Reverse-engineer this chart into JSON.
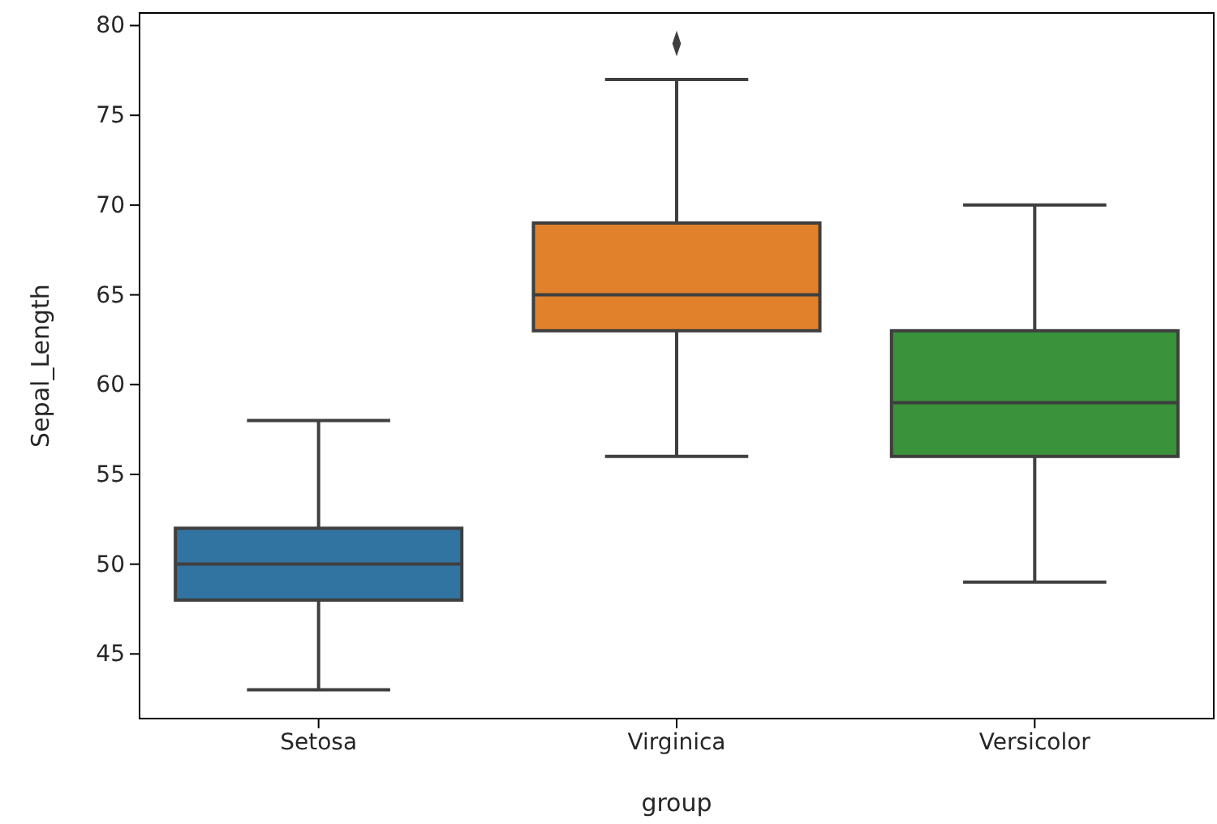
{
  "chart_data": {
    "type": "box",
    "xlabel": "group",
    "ylabel": "Sepal_Length",
    "categories": [
      "Setosa",
      "Virginica",
      "Versicolor"
    ],
    "colors": [
      "#3274a1",
      "#e1812c",
      "#3a923a"
    ],
    "boxes": [
      {
        "low": 43,
        "q1": 48,
        "median": 50,
        "q3": 52,
        "high": 58
      },
      {
        "low": 56,
        "q1": 63,
        "median": 65,
        "q3": 69,
        "high": 77,
        "outliers": [
          79
        ]
      },
      {
        "low": 49,
        "q1": 56,
        "median": 59,
        "q3": 63,
        "high": 70
      }
    ],
    "ylim": [
      41.4,
      80.7
    ],
    "yticks": [
      45,
      50,
      55,
      60,
      65,
      70,
      75,
      80
    ],
    "marker": "diamond"
  }
}
